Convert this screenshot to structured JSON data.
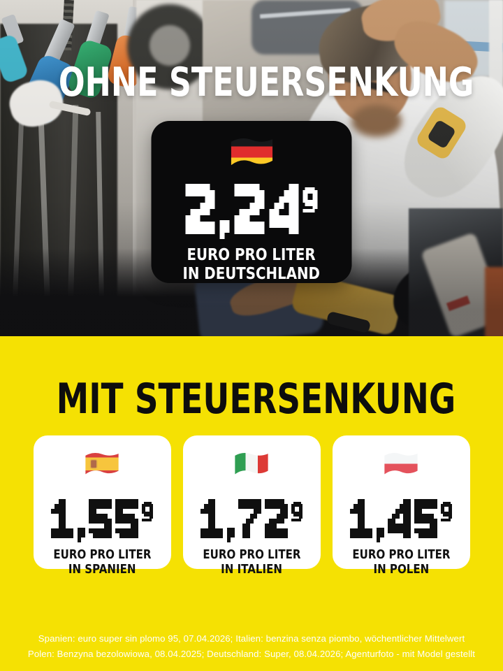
{
  "top_section": {
    "headline": "OHNE STEUERSENKUNG",
    "card": {
      "flag": "germany-flag",
      "price": "2,24",
      "price_superscript": "9",
      "unit_line1": "EURO PRO LITER",
      "unit_line2": "IN DEUTSCHLAND"
    }
  },
  "bottom_section": {
    "headline": "MIT STEUERSENKUNG",
    "cards": [
      {
        "flag": "spain-flag",
        "price": "1,55",
        "price_superscript": "9",
        "unit_line1": "EURO PRO LITER",
        "unit_line2": "IN SPANIEN"
      },
      {
        "flag": "italy-flag",
        "price": "1,72",
        "price_superscript": "9",
        "unit_line1": "EURO PRO LITER",
        "unit_line2": "IN ITALIEN"
      },
      {
        "flag": "poland-flag",
        "price": "1,45",
        "price_superscript": "9",
        "unit_line1": "EURO PRO LITER",
        "unit_line2": "IN POLEN"
      }
    ],
    "footnote_line1": "Spanien: euro super sin plomo 95, 07.04.2026; Italien: benzina senza piombo, wöchentlicher Mittelwert",
    "footnote_line2": "Polen: Benzyna bezolowiowa, 08.04.2025; Deutschland: Super, 08.04.2026; Agenturfoto - mit Model gestellt"
  },
  "colors": {
    "background_yellow": "#F5E103",
    "card_black": "#0A0A0B",
    "card_white": "#FFFFFF",
    "headline_white": "#FFFFFF",
    "headline_black": "#0D0D0D"
  }
}
